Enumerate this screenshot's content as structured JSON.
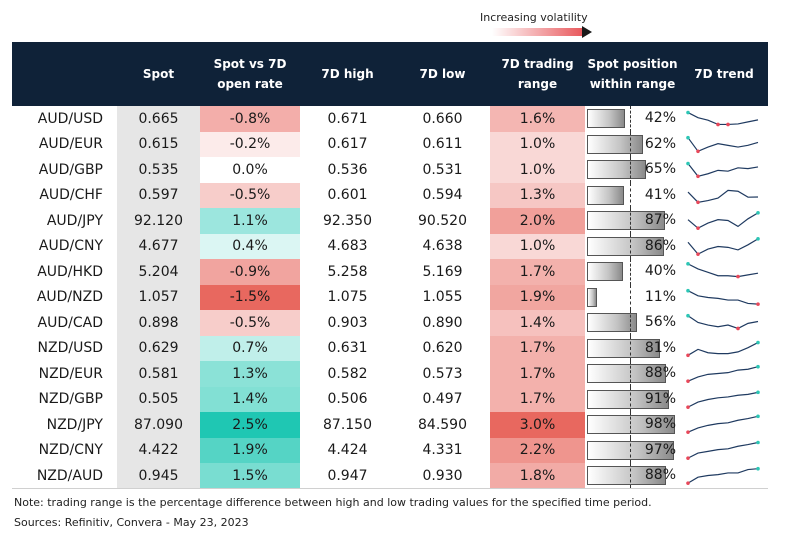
{
  "legend": {
    "volatility_label": "Increasing volatility",
    "gradient_start": "#ffffff",
    "gradient_end": "#e8565a"
  },
  "headers": {
    "pair": "",
    "spot": "Spot",
    "spot_vs_open": "Spot vs 7D open rate",
    "high": "7D high",
    "low": "7D low",
    "range": "7D trading range",
    "position": "Spot position within range",
    "trend": "7D trend"
  },
  "colors": {
    "header_bg": "#0f2238",
    "negative": "#e8685f",
    "positive": "#1fc7b3",
    "range": "#e8685f",
    "trend_line": "#1f3a60",
    "trend_start": "#e8485a",
    "trend_end": "#2cc6b5"
  },
  "rows": [
    {
      "pair": "AUD/USD",
      "spot": "0.665",
      "vs_open": "-0.8%",
      "vs_open_value": -0.8,
      "high": "0.671",
      "low": "0.660",
      "range": "1.6%",
      "range_value": 1.6,
      "position": "42%",
      "position_value": 0.42,
      "trend": [
        0.85,
        0.55,
        0.4,
        0.15,
        0.15,
        0.18,
        0.3,
        0.42
      ]
    },
    {
      "pair": "AUD/EUR",
      "spot": "0.615",
      "vs_open": "-0.2%",
      "vs_open_value": -0.2,
      "high": "0.617",
      "low": "0.611",
      "range": "1.0%",
      "range_value": 1.0,
      "position": "62%",
      "position_value": 0.62,
      "trend": [
        0.9,
        0.1,
        0.35,
        0.55,
        0.45,
        0.35,
        0.45,
        0.62
      ]
    },
    {
      "pair": "AUD/GBP",
      "spot": "0.535",
      "vs_open": "0.0%",
      "vs_open_value": 0.0,
      "high": "0.536",
      "low": "0.531",
      "range": "1.0%",
      "range_value": 1.0,
      "position": "65%",
      "position_value": 0.65,
      "trend": [
        0.85,
        0.1,
        0.25,
        0.45,
        0.4,
        0.6,
        0.55,
        0.65
      ]
    },
    {
      "pair": "AUD/CHF",
      "spot": "0.597",
      "vs_open": "-0.5%",
      "vs_open_value": -0.5,
      "high": "0.601",
      "low": "0.594",
      "range": "1.3%",
      "range_value": 1.3,
      "position": "41%",
      "position_value": 0.41,
      "trend": [
        0.7,
        0.1,
        0.2,
        0.35,
        0.8,
        0.75,
        0.4,
        0.41
      ]
    },
    {
      "pair": "AUD/JPY",
      "spot": "92.120",
      "vs_open": "1.1%",
      "vs_open_value": 1.1,
      "high": "92.350",
      "low": "90.520",
      "range": "2.0%",
      "range_value": 2.0,
      "position": "87%",
      "position_value": 0.87,
      "trend": [
        0.55,
        0.05,
        0.35,
        0.55,
        0.5,
        0.15,
        0.6,
        0.95
      ]
    },
    {
      "pair": "AUD/CNY",
      "spot": "4.677",
      "vs_open": "0.4%",
      "vs_open_value": 0.4,
      "high": "4.683",
      "low": "4.638",
      "range": "1.0%",
      "range_value": 1.0,
      "position": "86%",
      "position_value": 0.86,
      "trend": [
        0.75,
        0.05,
        0.35,
        0.5,
        0.45,
        0.3,
        0.6,
        0.95
      ]
    },
    {
      "pair": "AUD/HKD",
      "spot": "5.204",
      "vs_open": "-0.9%",
      "vs_open_value": -0.9,
      "high": "5.258",
      "low": "5.169",
      "range": "1.7%",
      "range_value": 1.7,
      "position": "40%",
      "position_value": 0.4,
      "trend": [
        0.95,
        0.65,
        0.45,
        0.25,
        0.25,
        0.2,
        0.3,
        0.4
      ]
    },
    {
      "pair": "AUD/NZD",
      "spot": "1.057",
      "vs_open": "-1.5%",
      "vs_open_value": -1.5,
      "high": "1.075",
      "low": "1.055",
      "range": "1.9%",
      "range_value": 1.9,
      "position": "11%",
      "position_value": 0.11,
      "trend": [
        0.9,
        0.6,
        0.5,
        0.45,
        0.35,
        0.35,
        0.15,
        0.11
      ]
    },
    {
      "pair": "AUD/CAD",
      "spot": "0.898",
      "vs_open": "-0.5%",
      "vs_open_value": -0.5,
      "high": "0.903",
      "low": "0.890",
      "range": "1.4%",
      "range_value": 1.4,
      "position": "56%",
      "position_value": 0.56,
      "trend": [
        0.9,
        0.5,
        0.35,
        0.25,
        0.35,
        0.15,
        0.45,
        0.56
      ]
    },
    {
      "pair": "NZD/USD",
      "spot": "0.629",
      "vs_open": "0.7%",
      "vs_open_value": 0.7,
      "high": "0.631",
      "low": "0.620",
      "range": "1.7%",
      "range_value": 1.7,
      "position": "81%",
      "position_value": 0.81,
      "trend": [
        0.1,
        0.45,
        0.25,
        0.2,
        0.2,
        0.3,
        0.55,
        0.85
      ]
    },
    {
      "pair": "NZD/EUR",
      "spot": "0.581",
      "vs_open": "1.3%",
      "vs_open_value": 1.3,
      "high": "0.582",
      "low": "0.573",
      "range": "1.7%",
      "range_value": 1.7,
      "position": "88%",
      "position_value": 0.88,
      "trend": [
        0.05,
        0.3,
        0.45,
        0.5,
        0.55,
        0.7,
        0.75,
        0.9
      ]
    },
    {
      "pair": "NZD/GBP",
      "spot": "0.505",
      "vs_open": "1.4%",
      "vs_open_value": 1.4,
      "high": "0.506",
      "low": "0.497",
      "range": "1.7%",
      "range_value": 1.7,
      "position": "91%",
      "position_value": 0.91,
      "trend": [
        0.05,
        0.35,
        0.5,
        0.6,
        0.65,
        0.75,
        0.8,
        0.92
      ]
    },
    {
      "pair": "NZD/JPY",
      "spot": "87.090",
      "vs_open": "2.5%",
      "vs_open_value": 2.5,
      "high": "87.150",
      "low": "84.590",
      "range": "3.0%",
      "range_value": 3.0,
      "position": "98%",
      "position_value": 0.98,
      "trend": [
        0.05,
        0.3,
        0.45,
        0.55,
        0.6,
        0.75,
        0.85,
        0.98
      ]
    },
    {
      "pair": "NZD/CNY",
      "spot": "4.422",
      "vs_open": "1.9%",
      "vs_open_value": 1.9,
      "high": "4.424",
      "low": "4.331",
      "range": "2.2%",
      "range_value": 2.2,
      "position": "97%",
      "position_value": 0.97,
      "trend": [
        0.05,
        0.35,
        0.45,
        0.55,
        0.6,
        0.75,
        0.85,
        0.97
      ]
    },
    {
      "pair": "NZD/AUD",
      "spot": "0.945",
      "vs_open": "1.5%",
      "vs_open_value": 1.5,
      "high": "0.947",
      "low": "0.930",
      "range": "1.8%",
      "range_value": 1.8,
      "position": "88%",
      "position_value": 0.88,
      "trend": [
        0.05,
        0.4,
        0.5,
        0.55,
        0.65,
        0.65,
        0.85,
        0.9
      ]
    }
  ],
  "footer": {
    "note": "Note: trading range is the percentage difference between high and low trading values for the specified time period.",
    "sources": "Sources: Refinitiv, Convera - May 23, 2023"
  }
}
